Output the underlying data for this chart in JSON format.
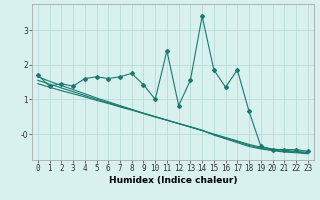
{
  "x": [
    0,
    1,
    2,
    3,
    4,
    5,
    6,
    7,
    8,
    9,
    10,
    11,
    12,
    13,
    14,
    15,
    16,
    17,
    18,
    19,
    20,
    21,
    22,
    23
  ],
  "y_main": [
    1.7,
    1.38,
    1.45,
    1.38,
    1.6,
    1.65,
    1.6,
    1.65,
    1.75,
    1.42,
    1.0,
    2.4,
    0.82,
    1.55,
    3.4,
    1.85,
    1.35,
    1.85,
    0.65,
    -0.35,
    -0.45,
    -0.45,
    -0.45,
    -0.5
  ],
  "y_line1": [
    1.65,
    1.52,
    1.4,
    1.28,
    1.16,
    1.04,
    0.93,
    0.82,
    0.71,
    0.6,
    0.5,
    0.4,
    0.3,
    0.2,
    0.1,
    0.0,
    -0.1,
    -0.2,
    -0.3,
    -0.38,
    -0.43,
    -0.47,
    -0.5,
    -0.53
  ],
  "y_line2": [
    1.55,
    1.44,
    1.33,
    1.22,
    1.11,
    1.0,
    0.9,
    0.8,
    0.7,
    0.6,
    0.5,
    0.4,
    0.3,
    0.2,
    0.1,
    -0.02,
    -0.12,
    -0.22,
    -0.33,
    -0.41,
    -0.46,
    -0.5,
    -0.52,
    -0.55
  ],
  "y_line3": [
    1.45,
    1.35,
    1.25,
    1.16,
    1.07,
    0.97,
    0.88,
    0.78,
    0.69,
    0.59,
    0.49,
    0.4,
    0.3,
    0.21,
    0.11,
    -0.03,
    -0.14,
    -0.25,
    -0.36,
    -0.43,
    -0.48,
    -0.52,
    -0.54,
    -0.57
  ],
  "line_color": "#1a7a6e",
  "bg_color": "#d8f0ee",
  "grid_color": "#b8dbd8",
  "xlabel": "Humidex (Indice chaleur)",
  "xlim": [
    -0.5,
    23.5
  ],
  "ylim": [
    -0.75,
    3.75
  ],
  "yticks": [
    0,
    1,
    2,
    3
  ],
  "ytick_labels": [
    "-0",
    "1",
    "2",
    "3"
  ],
  "xticks": [
    0,
    1,
    2,
    3,
    4,
    5,
    6,
    7,
    8,
    9,
    10,
    11,
    12,
    13,
    14,
    15,
    16,
    17,
    18,
    19,
    20,
    21,
    22,
    23
  ]
}
